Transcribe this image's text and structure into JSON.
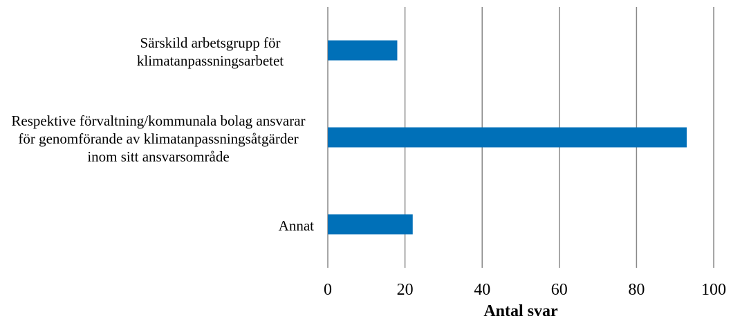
{
  "chart_data": {
    "type": "barh",
    "categories": [
      "Särskild arbetsgrupp för klimatanpassningsarbetet",
      "Respektive förvaltning/kommunala bolag ansvarar för genomförande av klimatanpassningsåtgärder inom sitt ansvarsområde",
      "Annat"
    ],
    "values": [
      18,
      93,
      22
    ],
    "color": "#0070b8",
    "xlabel": "Antal svar",
    "xlim": [
      0,
      100
    ],
    "xticks": [
      0,
      20,
      40,
      60,
      80,
      100
    ],
    "grid": true
  }
}
